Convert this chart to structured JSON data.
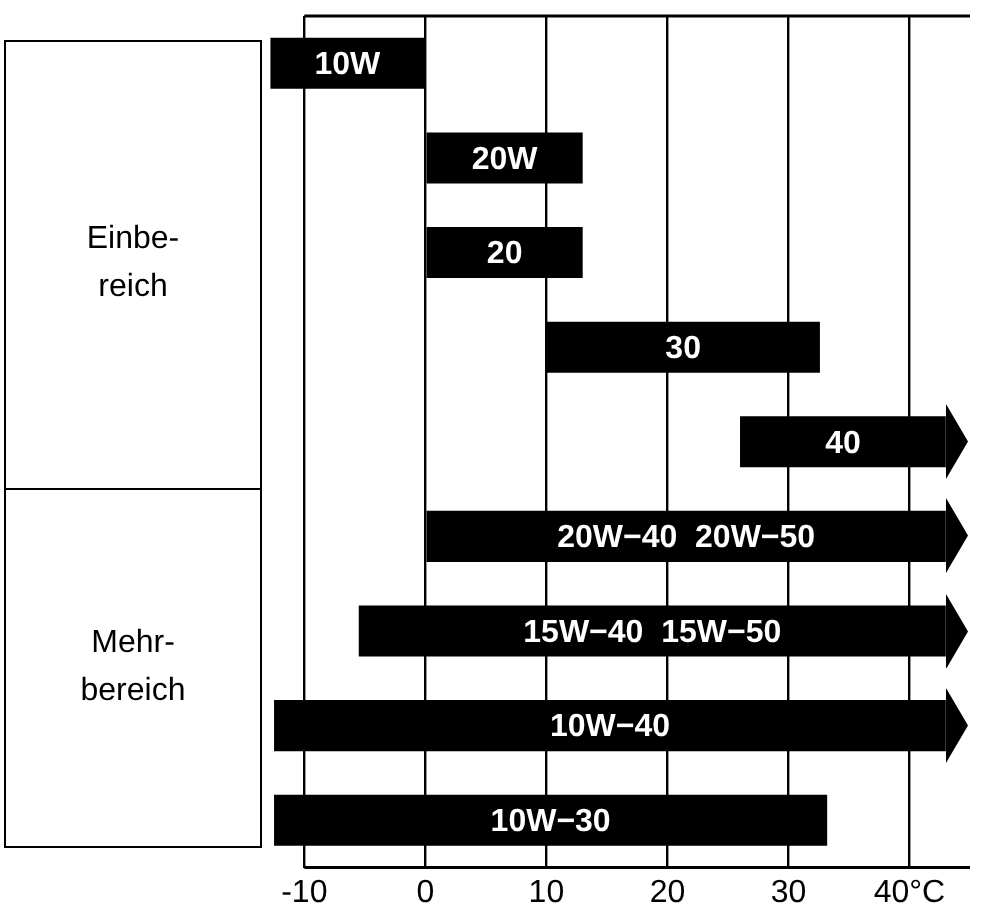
{
  "chart_data": {
    "type": "bar",
    "orientation": "horizontal",
    "categories": [
      "10W",
      "20W",
      "20",
      "30",
      "40",
      "20W−40  20W−50",
      "15W−40  15W−50",
      "10W−40",
      "10W−30"
    ],
    "base": [
      -12.8,
      0,
      0,
      10,
      26,
      0,
      -5.5,
      -12.5,
      -12.5
    ],
    "values": [
      12.8,
      13,
      13,
      22.6,
      17,
      43,
      48.5,
      55.5,
      45.7
    ],
    "color": "#000000",
    "xlim": [
      -13,
      45
    ],
    "xticks": [
      -10,
      0,
      10,
      20,
      30,
      {
        "value": 40,
        "label": "40°C"
      }
    ],
    "grid": "x",
    "legend": false,
    "annotations": [
      "Einbe-reich",
      "Mehr-bereich"
    ]
  }
}
